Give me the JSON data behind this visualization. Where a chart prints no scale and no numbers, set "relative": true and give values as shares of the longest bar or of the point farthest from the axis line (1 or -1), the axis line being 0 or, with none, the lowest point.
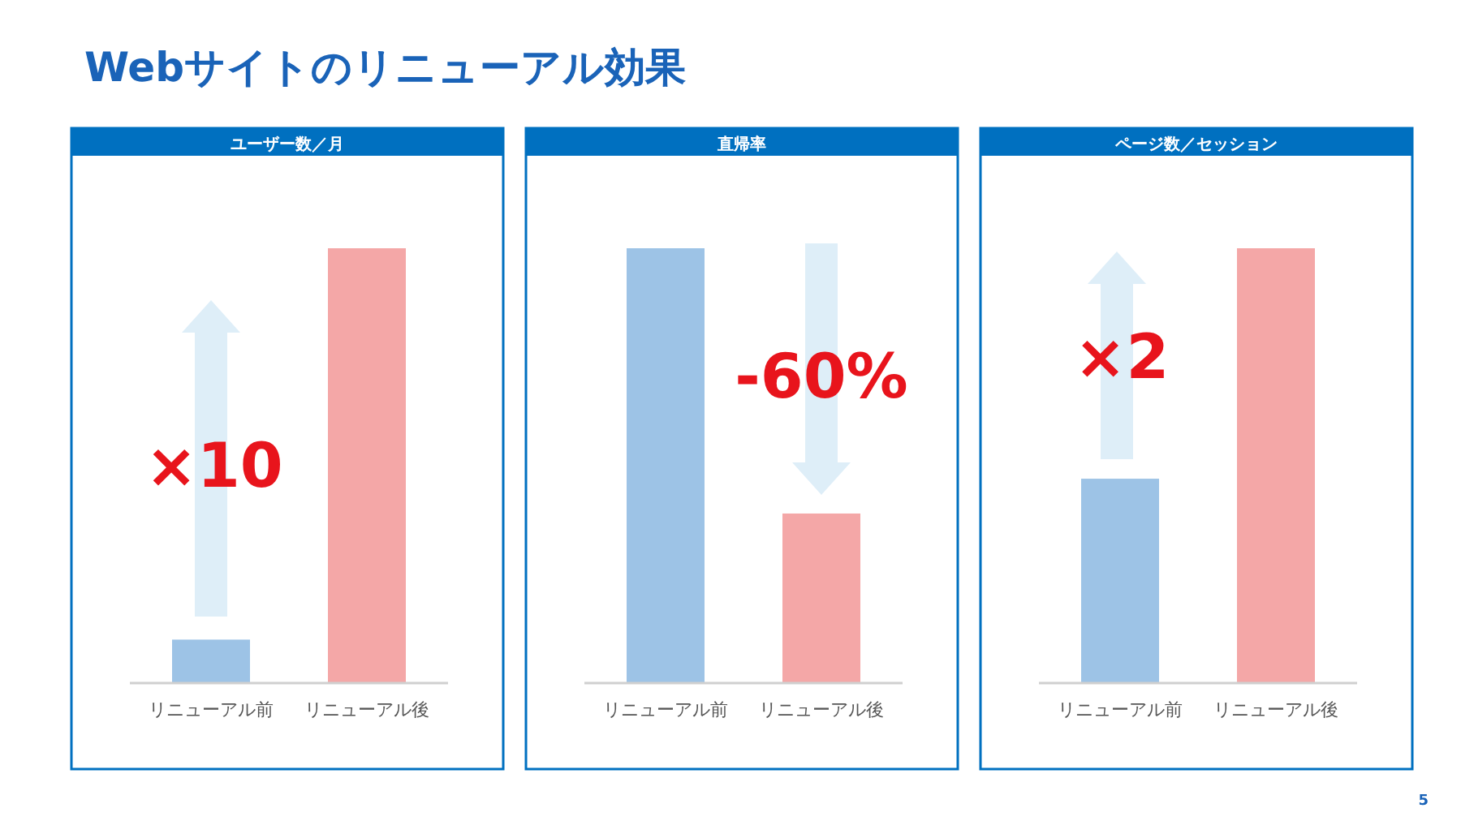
{
  "chart_data": [
    {
      "type": "bar",
      "title": "ユーザー数／月",
      "relative": true,
      "categories": [
        "リニューアル前",
        "リニューアル後"
      ],
      "values": [
        0.1,
        1
      ],
      "colors": [
        "#9dc3e6",
        "#f4a7a7"
      ],
      "annotations": [
        "Webサイトのリニューアル効果",
        "×10"
      ]
    },
    {
      "type": "bar",
      "title": "直帰率",
      "relative": true,
      "categories": [
        "リニューアル前",
        "リニューアル後"
      ],
      "values": [
        1,
        0.39
      ],
      "colors": [
        "#9dc3e6",
        "#f4a7a7"
      ],
      "annotations": [
        "-60%"
      ]
    },
    {
      "type": "bar",
      "title": "ページ数／セッション",
      "relative": true,
      "categories": [
        "リニューアル前",
        "リニューアル後"
      ],
      "values": [
        0.47,
        1
      ],
      "colors": [
        "#9dc3e6",
        "#f4a7a7"
      ],
      "annotations": [
        "×2",
        "5"
      ]
    }
  ]
}
